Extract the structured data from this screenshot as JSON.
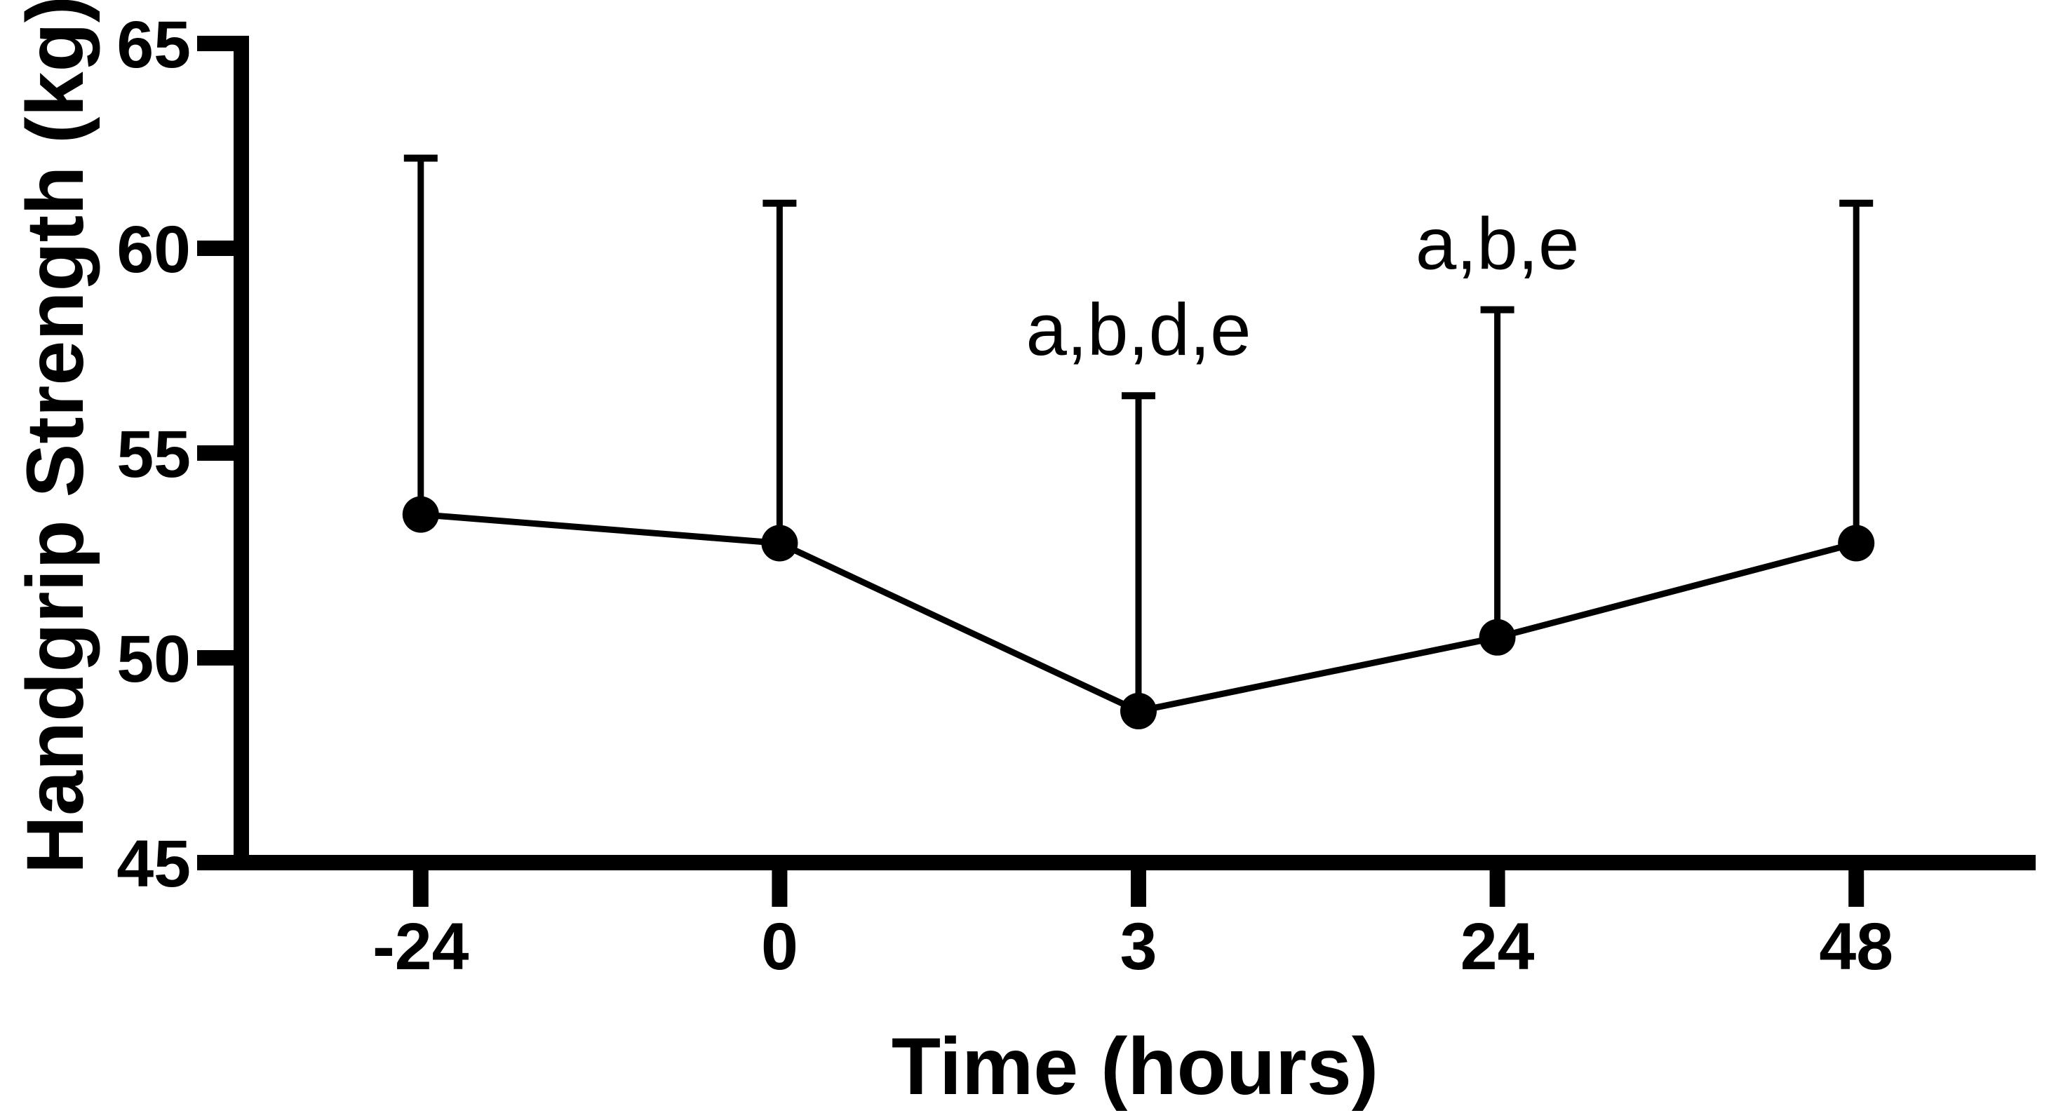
{
  "chart_data": {
    "type": "line",
    "title": "",
    "xlabel": "Time (hours)",
    "ylabel": "Handgrip Strength (kg)",
    "categories": [
      "-24",
      "0",
      "3",
      "24",
      "48"
    ],
    "series": [
      {
        "name": "Handgrip Strength",
        "values": [
          53.5,
          52.8,
          48.7,
          50.5,
          52.8
        ],
        "errors_plus": [
          8.7,
          8.3,
          7.7,
          8.0,
          8.3
        ]
      }
    ],
    "error_tops": [
      62.2,
      61.1,
      56.4,
      58.5,
      61.1
    ],
    "error_bar_direction": "up",
    "annotations": [
      {
        "category_index": 2,
        "text": "a,b,d,e"
      },
      {
        "category_index": 3,
        "text": "a,b,e"
      }
    ],
    "ylim": [
      45,
      65
    ],
    "yticks": [
      45,
      50,
      55,
      60,
      65
    ],
    "grid": false,
    "legend": false,
    "marker": "filled-circle",
    "colors": {
      "line": "#000000",
      "marker": "#000000",
      "axis": "#000000",
      "background": "#ffffff"
    }
  }
}
